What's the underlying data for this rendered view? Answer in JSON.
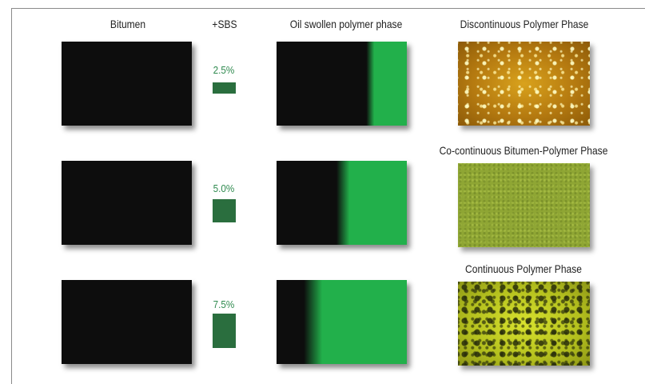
{
  "headers": {
    "bitumen": "Bitumen",
    "sbs": "+SBS",
    "oil": "Oil swollen polymer phase",
    "discontinuous": "Discontinuous Polymer Phase"
  },
  "rows": [
    {
      "percent": "2.5%",
      "sbs_fraction": 0.25,
      "green_fraction": 0.26,
      "phase_label": "Discontinuous Polymer Phase"
    },
    {
      "percent": "5.0%",
      "sbs_fraction": 0.5,
      "green_fraction": 0.45,
      "phase_label": "Co-continuous Bitumen-Polymer Phase"
    },
    {
      "percent": "7.5%",
      "sbs_fraction": 0.75,
      "green_fraction": 0.66,
      "phase_label": "Continuous Polymer Phase"
    }
  ],
  "colors": {
    "bitumen": "#0d0d0d",
    "polymer_green": "#22b04b",
    "sbs_square": "#2a6e3e",
    "percent_text": "#2f8a4f"
  }
}
